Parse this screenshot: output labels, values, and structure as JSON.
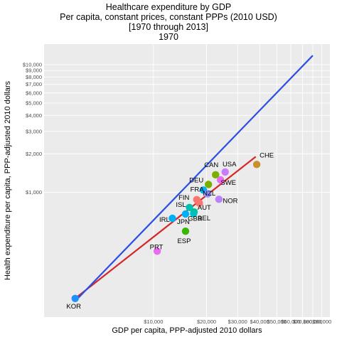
{
  "chart_data": {
    "type": "scatter",
    "title_lines": [
      "Healthcare expenditure by GDP",
      "Per capita, constant prices, constant PPPs (2010 USD)",
      "[1970 through 2013]",
      "1970"
    ],
    "xlabel": "GDP per capita, PPP-adjusted 2010 dollars",
    "ylabel": "Health expenditure per capita, PPP-adjusted 2010 dollars",
    "x_scale": "log",
    "y_scale": "log",
    "xlim": [
      2400,
      100000
    ],
    "ylim": [
      105,
      14500
    ],
    "x_ticks": [
      {
        "value": 10000,
        "label": "$10,000"
      },
      {
        "value": 20000,
        "label": "$20,000"
      },
      {
        "value": 30000,
        "label": "$30,000"
      },
      {
        "value": 40000,
        "label": "$40,000"
      },
      {
        "value": 50000,
        "label": "$50,000"
      },
      {
        "value": 60000,
        "label": "$60,000"
      },
      {
        "value": 70000,
        "label": "$70,000"
      },
      {
        "value": 80000,
        "label": "$80,000"
      },
      {
        "value": 90000,
        "label": "$90,000"
      }
    ],
    "y_ticks": [
      {
        "value": 1000,
        "label": "$1,000"
      },
      {
        "value": 2000,
        "label": "$2,000"
      },
      {
        "value": 3000,
        "label": "$3,000"
      },
      {
        "value": 4000,
        "label": "$4,000"
      },
      {
        "value": 5000,
        "label": "$5,000"
      },
      {
        "value": 6000,
        "label": "$6,000"
      },
      {
        "value": 7000,
        "label": "$7,000"
      },
      {
        "value": 8000,
        "label": "$8,000"
      },
      {
        "value": 9000,
        "label": "$9,000"
      },
      {
        "value": 10000,
        "label": "$10,000"
      }
    ],
    "grid": true,
    "background": "#ebebeb",
    "points": [
      {
        "label": "CHE",
        "x": 38500,
        "y": 1650,
        "color": "#c8912b"
      },
      {
        "label": "USA",
        "x": 25500,
        "y": 1440,
        "color": "#c77cff"
      },
      {
        "label": "CAN",
        "x": 22500,
        "y": 1370,
        "color": "#7cae00"
      },
      {
        "label": "SWE",
        "x": 24000,
        "y": 1250,
        "color": "#e76bf3"
      },
      {
        "label": "DEU",
        "x": 20500,
        "y": 1150,
        "color": "#7cae00"
      },
      {
        "label": "FRA",
        "x": 19200,
        "y": 1040,
        "color": "#00b0f6"
      },
      {
        "label": "NZL",
        "x": 20300,
        "y": 970,
        "color": "#9590ff"
      },
      {
        "label": "NOR",
        "x": 23500,
        "y": 880,
        "color": "#b983ff"
      },
      {
        "label": "FIN",
        "x": 17600,
        "y": 875,
        "color": "#f8766d"
      },
      {
        "label": "AUT",
        "x": 18200,
        "y": 820,
        "color": "#f8766d"
      },
      {
        "label": "ISL",
        "x": 16000,
        "y": 760,
        "color": "#00c0af"
      },
      {
        "label": "BEL",
        "x": 17000,
        "y": 700,
        "color": "#00bf7d"
      },
      {
        "label": "JPN",
        "x": 15200,
        "y": 675,
        "color": "#00b0f6"
      },
      {
        "label": "IRL",
        "x": 12800,
        "y": 625,
        "color": "#00b0f6"
      },
      {
        "label": "GBR",
        "x": 16900,
        "y": 680,
        "color": "#00bfc4"
      },
      {
        "label": "ESP",
        "x": 15200,
        "y": 495,
        "color": "#39b600"
      },
      {
        "label": "PRT",
        "x": 10500,
        "y": 345,
        "color": "#e76bf3"
      },
      {
        "label": "KOR",
        "x": 3600,
        "y": 147,
        "color": "#1e90ff"
      }
    ],
    "series": [
      {
        "type": "line",
        "color": "#d62728",
        "points": [
          [
            3600,
            147
          ],
          [
            38000,
            1900
          ]
        ]
      },
      {
        "type": "line",
        "color": "#2b4ee6",
        "points": [
          [
            3600,
            140
          ],
          [
            80000,
            11800
          ]
        ]
      }
    ]
  }
}
